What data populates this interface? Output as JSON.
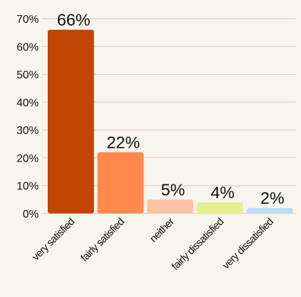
{
  "chart_data": {
    "type": "bar",
    "categories": [
      "very satisfied",
      "fairly satisfied",
      "neither",
      "fairly dissatisfied",
      "very dissatisfied"
    ],
    "values": [
      66,
      22,
      5,
      4,
      2
    ],
    "data_labels": [
      "66%",
      "22%",
      "5%",
      "4%",
      "2%"
    ],
    "colors": [
      "#c14400",
      "#ff8a4c",
      "#ffc3a5",
      "#e5ef8e",
      "#b9dcf7"
    ],
    "title": "",
    "xlabel": "",
    "ylabel": "",
    "ylim": [
      0,
      70
    ],
    "yticks": [
      0,
      10,
      20,
      30,
      40,
      50,
      60,
      70
    ],
    "ytick_labels": [
      "0%",
      "10%",
      "20%",
      "30%",
      "40%",
      "50%",
      "60%",
      "70%"
    ],
    "grid": true,
    "legend": "none"
  }
}
